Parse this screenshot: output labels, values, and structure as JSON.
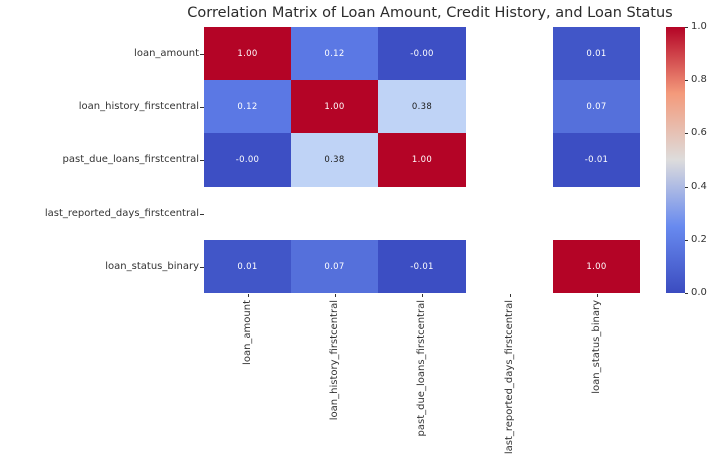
{
  "chart_data": {
    "type": "heatmap",
    "title": "Correlation Matrix of Loan Amount, Credit History, and Loan Status",
    "colormap": "coolwarm",
    "rows": [
      "loan_amount",
      "loan_history_firstcentral",
      "past_due_loans_firstcentral",
      "last_reported_days_firstcentral",
      "loan_status_binary"
    ],
    "cols": [
      "loan_amount",
      "loan_history_firstcentral",
      "past_due_loans_firstcentral",
      "last_reported_days_firstcentral",
      "loan_status_binary"
    ],
    "matrix": [
      [
        1.0,
        0.12,
        -0.0,
        null,
        0.01
      ],
      [
        0.12,
        1.0,
        0.38,
        null,
        0.07
      ],
      [
        -0.0,
        0.38,
        1.0,
        null,
        -0.01
      ],
      [
        null,
        null,
        null,
        null,
        null
      ],
      [
        0.01,
        0.07,
        -0.01,
        null,
        1.0
      ]
    ],
    "labels": [
      [
        "1.00",
        "0.12",
        "-0.00",
        "",
        "0.01"
      ],
      [
        "0.12",
        "1.00",
        "0.38",
        "",
        "0.07"
      ],
      [
        "-0.00",
        "0.38",
        "1.00",
        "",
        "-0.01"
      ],
      [
        "",
        "",
        "",
        "",
        ""
      ],
      [
        "0.01",
        "0.07",
        "-0.01",
        "",
        "1.00"
      ]
    ],
    "cell_colors": [
      [
        "#b40426",
        "#5b78e4",
        "#3d4fc4",
        "",
        "#4156c8"
      ],
      [
        "#5b78e4",
        "#b40426",
        "#bfd3f6",
        "",
        "#5570db"
      ],
      [
        "#3d4fc4",
        "#bfd3f6",
        "#b40426",
        "",
        "#3c4ec3"
      ],
      [
        "",
        "",
        "",
        "",
        ""
      ],
      [
        "#4156c8",
        "#5570db",
        "#3c4ec3",
        "",
        "#b40426"
      ]
    ],
    "text_colors": [
      [
        "#ffffff",
        "#ffffff",
        "#ffffff",
        "",
        "#ffffff"
      ],
      [
        "#ffffff",
        "#ffffff",
        "#1c1c1c",
        "",
        "#ffffff"
      ],
      [
        "#ffffff",
        "#1c1c1c",
        "#ffffff",
        "",
        "#ffffff"
      ],
      [
        "",
        "",
        "",
        "",
        ""
      ],
      [
        "#ffffff",
        "#ffffff",
        "#ffffff",
        "",
        "#ffffff"
      ]
    ],
    "nan_color": "#ffffff",
    "background": "#ffffff",
    "colorbar": {
      "ticks": [
        "1.0",
        "0.8",
        "0.6",
        "0.4",
        "0.2",
        "0.0"
      ],
      "min": 0.0,
      "max": 1.0,
      "gradient": [
        "#3b4cc0",
        "#688aef",
        "#dddcdc",
        "#f49a7b",
        "#b40426"
      ]
    }
  }
}
